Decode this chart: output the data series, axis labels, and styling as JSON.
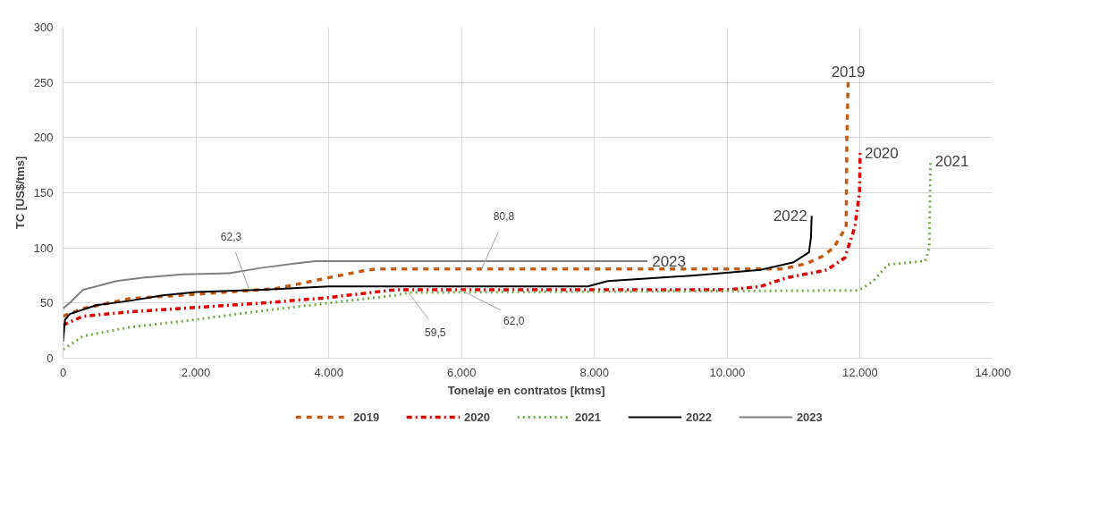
{
  "chart_data": {
    "type": "line",
    "xlabel": "Tonelaje en contratos  [ktms]",
    "ylabel": "TC [US$/tms]",
    "xlim": [
      0,
      14000
    ],
    "ylim": [
      0,
      300
    ],
    "xticks": [
      0,
      {
        "value": 2000,
        "label": "2.000"
      },
      {
        "value": 4000,
        "label": "4.000"
      },
      {
        "value": 6000,
        "label": "6.000"
      },
      {
        "value": 8000,
        "label": "8.000"
      },
      {
        "value": 10000,
        "label": "10.000"
      },
      {
        "value": 12000,
        "label": "12.000"
      },
      {
        "value": 14000,
        "label": "14.000"
      }
    ],
    "yticks": [
      0,
      50,
      100,
      150,
      200,
      250,
      300
    ],
    "grid": true,
    "legend": "bottom",
    "series": [
      {
        "name": "2019",
        "color": "#c55a11",
        "line_style": "dashed",
        "x": [
          0,
          300,
          1000,
          2000,
          3200,
          4000,
          4500,
          4700,
          10800,
          11000,
          11200,
          11420,
          11600,
          11790,
          11800,
          11820
        ],
        "values": [
          38,
          45,
          54,
          58,
          63,
          73,
          79,
          80.8,
          80.8,
          83,
          86,
          92,
          100,
          119,
          200,
          252
        ]
      },
      {
        "name": "2020",
        "color": "#e00000",
        "line_style": "dashdot",
        "x": [
          0,
          300,
          1000,
          2000,
          3000,
          4000,
          4700,
          5000,
          10000,
          10500,
          10900,
          11500,
          11770,
          11920,
          11990,
          12000
        ],
        "values": [
          30,
          38,
          42,
          46,
          50,
          55,
          60,
          62,
          62,
          65,
          73,
          80,
          91,
          119,
          150,
          186
        ]
      },
      {
        "name": "2021",
        "color": "#70ad47",
        "line_style": "dotted",
        "x": [
          0,
          300,
          1000,
          2000,
          3000,
          4000,
          5000,
          5200,
          11980,
          12200,
          12420,
          12980,
          13040,
          13060
        ],
        "values": [
          8,
          20,
          28,
          35,
          43,
          50,
          57,
          59.5,
          61.5,
          70,
          85,
          88,
          100,
          179
        ]
      },
      {
        "name": "2022",
        "color": "#000000",
        "line_style": "solid",
        "x": [
          0,
          30,
          100,
          500,
          1000,
          1500,
          2000,
          3000,
          4000,
          7900,
          8200,
          9500,
          10500,
          11000,
          11230,
          11260,
          11270
        ],
        "values": [
          15,
          35,
          40,
          48,
          52,
          57,
          60,
          62,
          65,
          65,
          70,
          75,
          80,
          87,
          96,
          110,
          129
        ]
      },
      {
        "name": "2023",
        "color": "#808080",
        "line_style": "solid",
        "x": [
          0,
          100,
          300,
          500,
          800,
          1200,
          1800,
          2500,
          3000,
          3500,
          3800,
          8800
        ],
        "values": [
          45,
          50,
          62,
          65,
          70,
          73,
          76,
          77,
          82,
          86,
          88,
          88
        ]
      }
    ],
    "annotations": [
      {
        "text": "62,3",
        "x": 2800,
        "y": 62.3
      },
      {
        "text": "80,8",
        "x": 6300,
        "y": 80.8
      },
      {
        "text": "59,5",
        "x": 5200,
        "y": 59.5
      },
      {
        "text": "62,0",
        "x": 5980,
        "y": 62.0
      }
    ]
  }
}
